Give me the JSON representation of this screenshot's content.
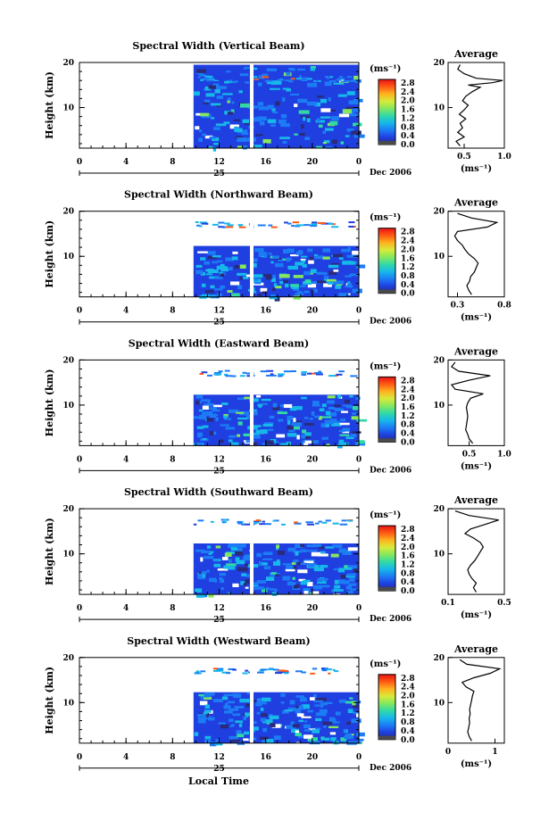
{
  "chart_data": [
    {
      "type": "heatmap",
      "title": "Spectral Width (Vertical Beam)",
      "ylabel": "Height (km)",
      "yticks": [
        "20",
        "10"
      ],
      "ylim": [
        1,
        20
      ],
      "xticks": [
        "0",
        "4",
        "8",
        "12",
        "16",
        "20",
        "0"
      ],
      "xlim": [
        0,
        24
      ],
      "day_label": "25",
      "month_label": "Dec 2006",
      "data_start_hour": 9.8,
      "data_gap_hour": 14.8,
      "colorbar": {
        "unit": "(ms⁻¹)",
        "labels": [
          "2.8",
          "2.4",
          "2.0",
          "1.6",
          "1.2",
          "0.8",
          "0.4",
          "0.0"
        ]
      },
      "average": {
        "title": "Average",
        "xunit": "(ms⁻¹)",
        "xticks": [
          "0.5",
          "1.0"
        ],
        "yticks": [
          "20",
          "10"
        ],
        "xlim": [
          0.3,
          1.0
        ],
        "profile": [
          [
            1.5,
            0.45
          ],
          [
            2.5,
            0.4
          ],
          [
            3.5,
            0.5
          ],
          [
            4.5,
            0.42
          ],
          [
            5.5,
            0.48
          ],
          [
            6.5,
            0.45
          ],
          [
            7.5,
            0.52
          ],
          [
            8.5,
            0.44
          ],
          [
            9.5,
            0.5
          ],
          [
            10.5,
            0.55
          ],
          [
            11.5,
            0.48
          ],
          [
            12.5,
            0.52
          ],
          [
            13.5,
            0.6
          ],
          [
            14.5,
            0.7
          ],
          [
            15,
            0.55
          ],
          [
            15.5,
            0.85
          ],
          [
            16,
            0.98
          ],
          [
            16.5,
            0.65
          ],
          [
            17.5,
            0.5
          ],
          [
            18.5,
            0.42
          ],
          [
            19.5,
            0.45
          ]
        ]
      }
    },
    {
      "type": "heatmap",
      "title": "Spectral Width (Northward Beam)",
      "ylabel": "Height (km)",
      "yticks": [
        "20",
        "10"
      ],
      "ylim": [
        1,
        20
      ],
      "xticks": [
        "0",
        "4",
        "8",
        "12",
        "16",
        "20",
        "0"
      ],
      "xlim": [
        0,
        24
      ],
      "day_label": "25",
      "month_label": "Dec 2006",
      "data_start_hour": 9.8,
      "data_gap_hour": 14.8,
      "colorbar": {
        "unit": "(ms⁻¹)",
        "labels": [
          "2.8",
          "2.4",
          "2.0",
          "1.6",
          "1.2",
          "0.8",
          "0.4",
          "0.0"
        ]
      },
      "average": {
        "title": "Average",
        "xunit": "(ms⁻¹)",
        "xticks": [
          "0.3",
          "0.8"
        ],
        "yticks": [
          "20",
          "10"
        ],
        "xlim": [
          0.2,
          0.8
        ],
        "profile": [
          [
            1.5,
            0.45
          ],
          [
            2.5,
            0.42
          ],
          [
            3.5,
            0.4
          ],
          [
            4.5,
            0.43
          ],
          [
            5.5,
            0.44
          ],
          [
            6.5,
            0.48
          ],
          [
            7.5,
            0.5
          ],
          [
            8.5,
            0.52
          ],
          [
            9.5,
            0.48
          ],
          [
            10.5,
            0.42
          ],
          [
            11.5,
            0.38
          ],
          [
            12.5,
            0.35
          ],
          [
            13.5,
            0.3
          ],
          [
            14.5,
            0.27
          ],
          [
            15.5,
            0.3
          ],
          [
            16.5,
            0.62
          ],
          [
            17.5,
            0.72
          ],
          [
            18.5,
            0.45
          ],
          [
            19.5,
            0.3
          ]
        ]
      }
    },
    {
      "type": "heatmap",
      "title": "Spectral Width (Eastward Beam)",
      "ylabel": "Height (km)",
      "yticks": [
        "20",
        "10"
      ],
      "ylim": [
        1,
        20
      ],
      "xticks": [
        "0",
        "4",
        "8",
        "12",
        "16",
        "20",
        "0"
      ],
      "xlim": [
        0,
        24
      ],
      "day_label": "25",
      "month_label": "Dec 2006",
      "data_start_hour": 9.8,
      "data_gap_hour": 14.8,
      "colorbar": {
        "unit": "(ms⁻¹)",
        "labels": [
          "2.8",
          "2.4",
          "2.0",
          "1.6",
          "1.2",
          "0.8",
          "0.4",
          "0.0"
        ]
      },
      "average": {
        "title": "Average",
        "xunit": "(ms⁻¹)",
        "xticks": [
          "0.5",
          "1.0"
        ],
        "yticks": [
          "20",
          "10"
        ],
        "xlim": [
          0.2,
          1.0
        ],
        "profile": [
          [
            1.5,
            0.55
          ],
          [
            2.5,
            0.5
          ],
          [
            3.5,
            0.48
          ],
          [
            4.5,
            0.45
          ],
          [
            5.5,
            0.46
          ],
          [
            6.5,
            0.47
          ],
          [
            7.5,
            0.48
          ],
          [
            8.5,
            0.47
          ],
          [
            9.5,
            0.46
          ],
          [
            10.5,
            0.48
          ],
          [
            11.5,
            0.52
          ],
          [
            12.5,
            0.7
          ],
          [
            13.5,
            0.3
          ],
          [
            14.5,
            0.25
          ],
          [
            15.5,
            0.5
          ],
          [
            16.5,
            0.8
          ],
          [
            17.5,
            0.35
          ],
          [
            18.5,
            0.25
          ],
          [
            19.5,
            0.3
          ]
        ]
      }
    },
    {
      "type": "heatmap",
      "title": "Spectral Width (Southward Beam)",
      "ylabel": "Height (km)",
      "yticks": [
        "20",
        "10"
      ],
      "ylim": [
        1,
        20
      ],
      "xticks": [
        "0",
        "4",
        "8",
        "12",
        "16",
        "20",
        "0"
      ],
      "xlim": [
        0,
        24
      ],
      "day_label": "25",
      "month_label": "Dec 2006",
      "data_start_hour": 9.8,
      "data_gap_hour": 14.8,
      "colorbar": {
        "unit": "(ms⁻¹)",
        "labels": [
          "2.8",
          "2.4",
          "2.0",
          "1.6",
          "1.2",
          "0.8",
          "0.4",
          "0.0"
        ]
      },
      "average": {
        "title": "Average",
        "xunit": "(ms⁻¹)",
        "xticks": [
          "0.1",
          "0.5"
        ],
        "yticks": [
          "20",
          "10"
        ],
        "xlim": [
          0.1,
          0.5
        ],
        "profile": [
          [
            1.5,
            0.3
          ],
          [
            2.5,
            0.28
          ],
          [
            3.5,
            0.3
          ],
          [
            4.5,
            0.27
          ],
          [
            5.5,
            0.25
          ],
          [
            6.5,
            0.24
          ],
          [
            7.5,
            0.26
          ],
          [
            8.5,
            0.29
          ],
          [
            9.5,
            0.31
          ],
          [
            10.5,
            0.33
          ],
          [
            11.5,
            0.35
          ],
          [
            12.5,
            0.33
          ],
          [
            13.5,
            0.28
          ],
          [
            14.5,
            0.22
          ],
          [
            15.5,
            0.26
          ],
          [
            16.5,
            0.36
          ],
          [
            17.5,
            0.46
          ],
          [
            18.5,
            0.25
          ],
          [
            19.5,
            0.15
          ]
        ]
      }
    },
    {
      "type": "heatmap",
      "title": "Spectral Width (Westward Beam)",
      "ylabel": "Height (km)",
      "yticks": [
        "20",
        "10"
      ],
      "ylim": [
        1,
        20
      ],
      "xticks": [
        "0",
        "4",
        "8",
        "12",
        "16",
        "20",
        "0"
      ],
      "xlim": [
        0,
        24
      ],
      "day_label": "25",
      "month_label": "Dec 2006",
      "data_start_hour": 9.8,
      "data_gap_hour": 14.8,
      "colorbar": {
        "unit": "(ms⁻¹)",
        "labels": [
          "2.8",
          "2.4",
          "2.0",
          "1.6",
          "1.2",
          "0.8",
          "0.4",
          "0.0"
        ]
      },
      "average": {
        "title": "Average",
        "xunit": "(ms⁻¹)",
        "xticks": [
          "0",
          "1"
        ],
        "yticks": [
          "20",
          "10"
        ],
        "xlim": [
          0,
          1.2
        ],
        "profile": [
          [
            1.5,
            0.5
          ],
          [
            2.5,
            0.45
          ],
          [
            3.5,
            0.42
          ],
          [
            4.5,
            0.44
          ],
          [
            5.5,
            0.46
          ],
          [
            6.5,
            0.45
          ],
          [
            7.5,
            0.47
          ],
          [
            8.5,
            0.46
          ],
          [
            9.5,
            0.48
          ],
          [
            10.5,
            0.5
          ],
          [
            11.5,
            0.52
          ],
          [
            12.5,
            0.55
          ],
          [
            13.5,
            0.38
          ],
          [
            14.5,
            0.3
          ],
          [
            15.5,
            0.55
          ],
          [
            16.5,
            0.9
          ],
          [
            17.5,
            1.1
          ],
          [
            18.5,
            0.4
          ],
          [
            19.5,
            0.25
          ]
        ]
      }
    }
  ],
  "xlabel": "Local Time",
  "colors": {
    "colormap": [
      "#2a2a78",
      "#1f3fe0",
      "#1c7cf5",
      "#16b8ea",
      "#32d9a6",
      "#86e85d",
      "#d8ea3a",
      "#ffb21e",
      "#ff5a14",
      "#e81414"
    ]
  }
}
